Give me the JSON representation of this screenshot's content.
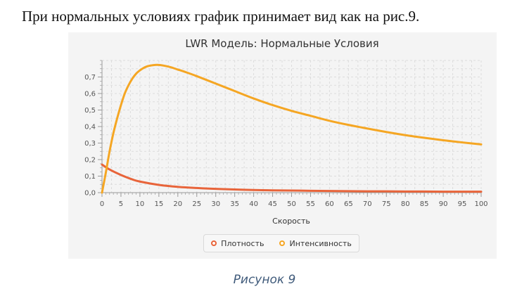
{
  "document": {
    "intro_text": "При нормальных условиях график принимает вид как на рис.9.",
    "caption": "Рисунок 9"
  },
  "colors": {
    "density": "#e8643a",
    "intensity": "#f5a623",
    "grid": "#dcdcdc",
    "axis": "#9a9a9a"
  },
  "chart_data": {
    "type": "line",
    "title": "LWR Модель: Нормальные Условия",
    "xlabel": "Скорость",
    "ylabel": "",
    "xlim": [
      0,
      100
    ],
    "ylim": [
      0,
      0.8
    ],
    "x_ticks": [
      "0",
      "5",
      "10",
      "15",
      "20",
      "25",
      "30",
      "35",
      "40",
      "45",
      "50",
      "55",
      "60",
      "65",
      "70",
      "75",
      "80",
      "85",
      "90",
      "95",
      "100"
    ],
    "y_ticks": [
      "0,0",
      "0,1",
      "0,2",
      "0,3",
      "0,4",
      "0,5",
      "0,6",
      "0,7"
    ],
    "grid": true,
    "legend_position": "bottom",
    "series": [
      {
        "name": "Плотность",
        "color": "#e8643a",
        "x": [
          0,
          2,
          5,
          8,
          10,
          15,
          20,
          25,
          30,
          35,
          40,
          45,
          50,
          55,
          60,
          65,
          70,
          75,
          80,
          85,
          90,
          95,
          100
        ],
        "y": [
          0.17,
          0.14,
          0.107,
          0.08,
          0.067,
          0.047,
          0.035,
          0.028,
          0.023,
          0.019,
          0.016,
          0.014,
          0.013,
          0.011,
          0.01,
          0.009,
          0.008,
          0.008,
          0.007,
          0.007,
          0.006,
          0.006,
          0.006
        ]
      },
      {
        "name": "Интенсивность",
        "color": "#f5a623",
        "x": [
          0,
          1,
          2,
          3,
          4,
          5,
          6,
          7,
          8,
          9,
          10,
          11,
          12,
          13,
          14,
          15,
          16,
          18,
          20,
          22,
          25,
          30,
          35,
          40,
          45,
          50,
          55,
          60,
          65,
          70,
          75,
          80,
          85,
          90,
          95,
          100
        ],
        "y": [
          0.0,
          0.12,
          0.25,
          0.36,
          0.45,
          0.53,
          0.6,
          0.65,
          0.69,
          0.72,
          0.74,
          0.755,
          0.765,
          0.77,
          0.773,
          0.773,
          0.77,
          0.76,
          0.745,
          0.73,
          0.705,
          0.66,
          0.615,
          0.57,
          0.53,
          0.495,
          0.465,
          0.435,
          0.41,
          0.388,
          0.367,
          0.348,
          0.332,
          0.317,
          0.304,
          0.292
        ]
      }
    ]
  }
}
